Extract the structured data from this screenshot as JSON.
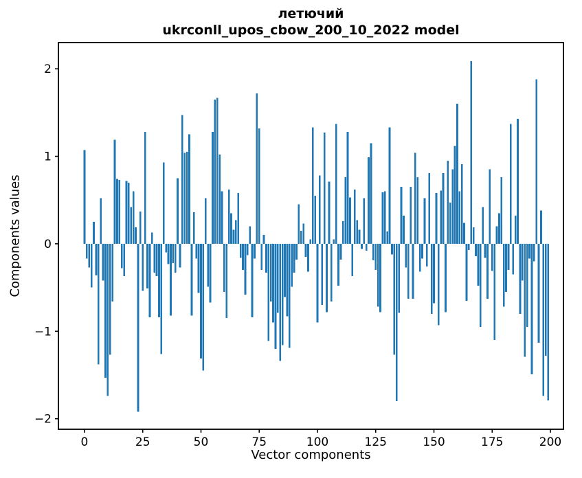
{
  "figure": {
    "title_line1": "летючий",
    "title_line2": "ukrconll_upos_cbow_200_10_2022 model"
  },
  "chart_data": {
    "type": "bar",
    "title": "летючий\nukrconll_upos_cbow_200_10_2022 model",
    "xlabel": "Vector components",
    "ylabel": "Components values",
    "x_ticks": [
      0,
      25,
      50,
      75,
      100,
      125,
      150,
      175,
      200
    ],
    "y_ticks": [
      -2,
      -1,
      0,
      1,
      2
    ],
    "xlim": [
      -11.2,
      205.6
    ],
    "ylim": [
      -2.12,
      2.3
    ],
    "grid": false,
    "legend": "none",
    "bar_color": "#1f77b4",
    "bar_width": 0.8,
    "n_components": 200,
    "values": [
      1.07,
      -0.17,
      -0.27,
      -0.5,
      0.25,
      -0.36,
      -1.38,
      0.52,
      -0.42,
      -1.53,
      -1.74,
      -1.27,
      -0.66,
      1.19,
      0.74,
      0.73,
      -0.28,
      -0.37,
      0.72,
      0.7,
      0.42,
      0.6,
      0.19,
      -1.92,
      0.37,
      -0.54,
      1.28,
      -0.51,
      -0.84,
      0.13,
      -0.33,
      -0.37,
      -0.84,
      -1.26,
      0.93,
      -0.1,
      -0.23,
      -0.82,
      -0.22,
      -0.33,
      0.75,
      -0.27,
      1.47,
      1.04,
      1.05,
      1.25,
      -0.82,
      0.36,
      -0.17,
      -0.56,
      -1.31,
      -1.45,
      0.52,
      -0.49,
      -0.67,
      1.28,
      1.65,
      1.67,
      1.02,
      0.6,
      -0.55,
      -0.85,
      0.62,
      0.35,
      0.16,
      0.27,
      0.58,
      -0.16,
      -0.3,
      -0.58,
      -0.13,
      0.2,
      -0.84,
      -0.17,
      1.72,
      1.32,
      -0.3,
      0.1,
      -0.33,
      -1.11,
      -0.66,
      -0.9,
      -1.2,
      -0.79,
      -1.34,
      -1.16,
      -0.61,
      -0.83,
      -1.19,
      -0.49,
      -0.33,
      -0.18,
      0.45,
      0.15,
      0.23,
      -0.15,
      -0.32,
      0.05,
      1.33,
      0.55,
      -0.9,
      0.78,
      -0.7,
      1.27,
      -0.78,
      0.71,
      -0.66,
      0.05,
      1.37,
      -0.48,
      -0.18,
      0.26,
      0.76,
      1.28,
      0.53,
      -0.37,
      0.62,
      0.27,
      0.16,
      -0.06,
      0.52,
      -0.08,
      0.99,
      1.15,
      -0.19,
      -0.3,
      -0.72,
      -0.78,
      0.59,
      0.6,
      0.14,
      1.33,
      -0.12,
      -1.27,
      -1.8,
      -0.79,
      0.65,
      0.32,
      -0.27,
      -0.63,
      0.65,
      -0.63,
      1.04,
      0.76,
      -0.32,
      -0.17,
      0.52,
      -0.26,
      0.81,
      -0.8,
      -0.68,
      0.58,
      -0.93,
      0.61,
      0.81,
      -0.78,
      0.95,
      0.47,
      0.85,
      1.12,
      1.6,
      0.6,
      0.91,
      0.24,
      -0.65,
      -0.07,
      2.09,
      0.19,
      -0.14,
      -0.48,
      -0.95,
      0.42,
      -0.16,
      -0.63,
      0.85,
      -0.31,
      -1.1,
      0.2,
      0.35,
      0.76,
      -0.72,
      -0.55,
      -0.3,
      1.37,
      -0.35,
      0.32,
      1.43,
      -0.8,
      -0.42,
      -1.29,
      -0.95,
      -0.17,
      -1.49,
      -0.2,
      1.88,
      -1.13,
      0.38,
      -1.74,
      -1.28,
      -1.79
    ]
  }
}
